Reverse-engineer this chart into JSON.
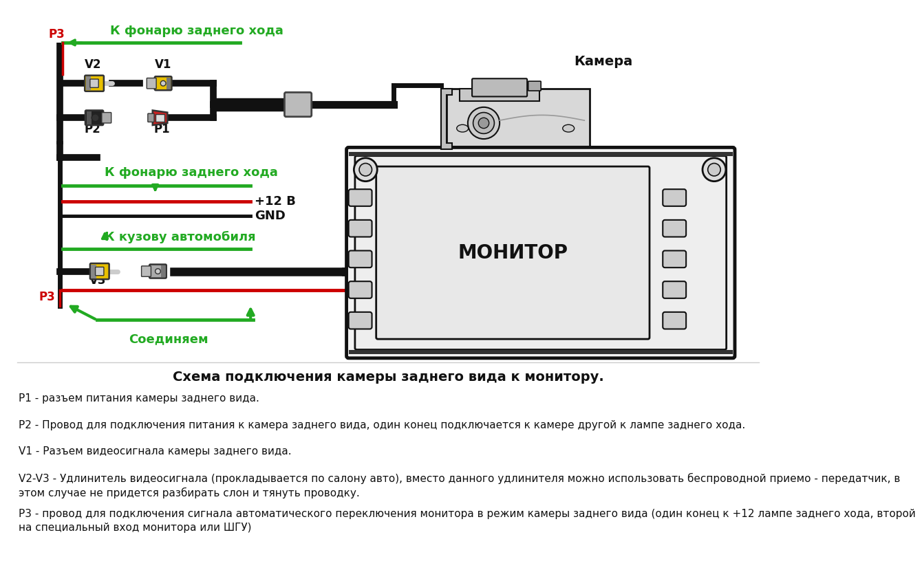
{
  "bg_color": "#ffffff",
  "title_text": "Схема подключения камеры заднего вида к монитору.",
  "green_color": "#22aa22",
  "red_color": "#cc0000",
  "black_color": "#111111",
  "yellow_color": "#e8c000",
  "gray_color": "#aaaaaa",
  "descriptions": [
    "Р1 - разъем питания камеры заднего вида.",
    "Р2 - Провод для подключения питания к камера заднего вида, один конец подключается к камере другой к лампе заднего хода.",
    "V1 - Разъем видеосигнала камеры заднего вида.",
    "V2-V3 - Удлинитель видеосигнала (прокладывается по салону авто), вместо данного удлинителя можно использовать беспроводной приемо - передатчик, в\nэтом случае не придется разбирать слон и тянуть проводку.",
    "Р3 - провод для подключения сигнала автоматического переключения монитора в режим камеры заднего вида (один конец к +12 лампе заднего хода, второй\nна специальный вход монитора или ШГУ)"
  ]
}
